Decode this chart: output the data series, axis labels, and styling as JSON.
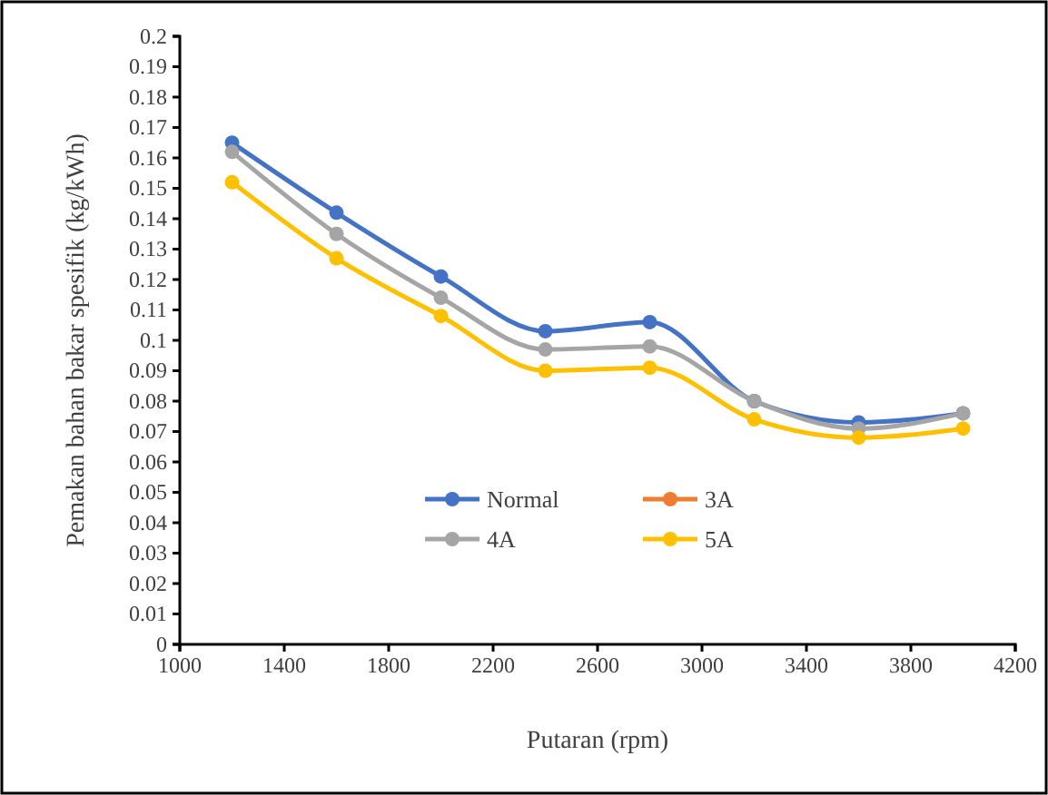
{
  "chart_data": {
    "type": "line",
    "xlabel": "Putaran (rpm)",
    "ylabel": "Pemakan bahan bakar spesifik (kg/kWh)",
    "x": [
      1200,
      1600,
      2000,
      2400,
      2800,
      3200,
      3600,
      4000
    ],
    "series": [
      {
        "name": "Normal",
        "color": "#4472c4",
        "values": [
          0.165,
          0.142,
          0.121,
          0.103,
          0.106,
          0.08,
          0.073,
          0.076
        ]
      },
      {
        "name": "3A",
        "color": "#ed7d31",
        "values": [
          null,
          null,
          null,
          null,
          null,
          null,
          null,
          null
        ]
      },
      {
        "name": "4A",
        "color": "#a5a5a5",
        "values": [
          0.162,
          0.135,
          0.114,
          0.097,
          0.098,
          0.08,
          0.071,
          0.076
        ]
      },
      {
        "name": "5A",
        "color": "#ffc000",
        "values": [
          0.152,
          0.127,
          0.108,
          0.09,
          0.091,
          0.074,
          0.068,
          0.071
        ]
      }
    ],
    "xlim": [
      1000,
      4200
    ],
    "xticks": [
      1000,
      1400,
      1800,
      2200,
      2600,
      3000,
      3400,
      3800,
      4200
    ],
    "ylim": [
      0,
      0.2
    ],
    "yticks": [
      0,
      0.01,
      0.02,
      0.03,
      0.04,
      0.05,
      0.06,
      0.07,
      0.08,
      0.09,
      0.1,
      0.11,
      0.12,
      0.13,
      0.14,
      0.15,
      0.16,
      0.17,
      0.18,
      0.19,
      0.2
    ],
    "marker": "circle",
    "line_style": "solid",
    "grid": false,
    "legend": "bottom"
  }
}
